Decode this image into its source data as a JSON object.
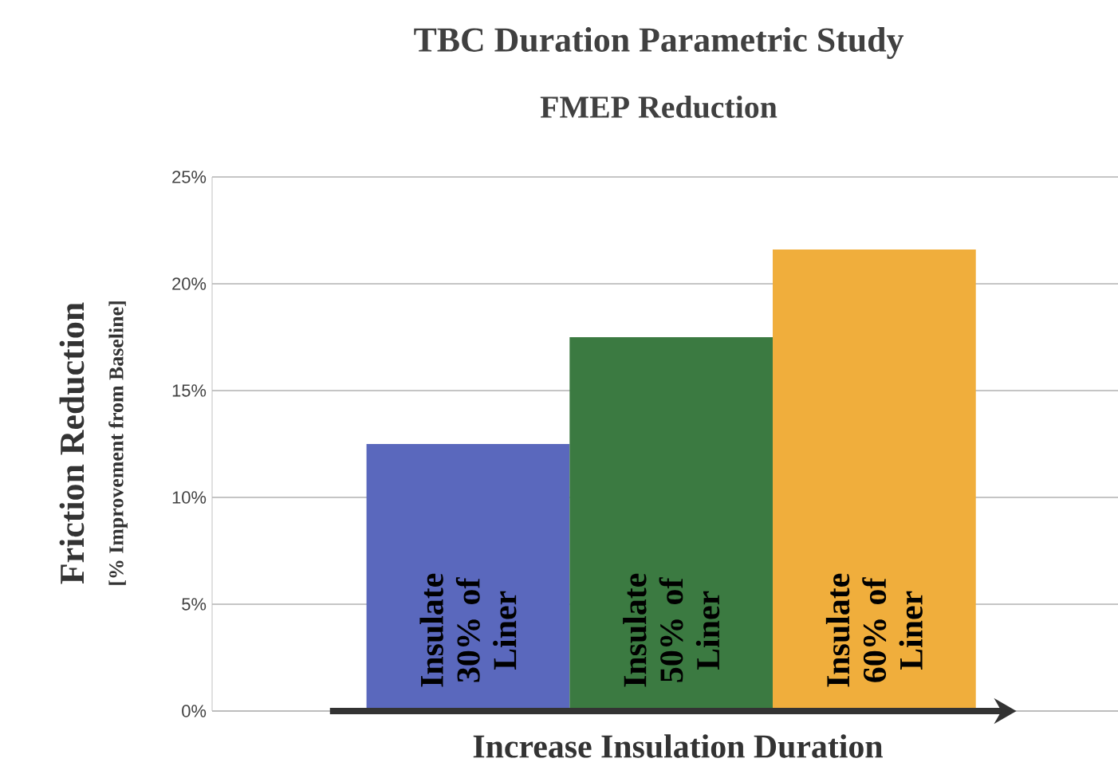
{
  "chart_data": {
    "type": "bar",
    "title": "TBC Duration Parametric Study",
    "subtitle": "FMEP Reduction",
    "xlabel": "Increase Insulation Duration",
    "ylabel": "Friction Reduction",
    "annotations": [
      "[% Improvement  from Baseline]"
    ],
    "categories": [
      "Insulate 30% of Liner",
      "Insulate 50% of Liner",
      "Insulate 60% of Liner"
    ],
    "values": [
      12.5,
      17.5,
      21.6
    ],
    "colors": [
      "#5a68bd",
      "#3b7a41",
      "#f0ae3c"
    ],
    "ylim": [
      0,
      25
    ],
    "yticks": [
      {
        "value": 0,
        "label": "0%"
      },
      {
        "value": 5,
        "label": "5%"
      },
      {
        "value": 10,
        "label": "10%"
      },
      {
        "value": 15,
        "label": "15%"
      },
      {
        "value": 20,
        "label": "20%"
      },
      {
        "value": 25,
        "label": "25%"
      }
    ],
    "grid": "y",
    "tick_labels": "y"
  }
}
